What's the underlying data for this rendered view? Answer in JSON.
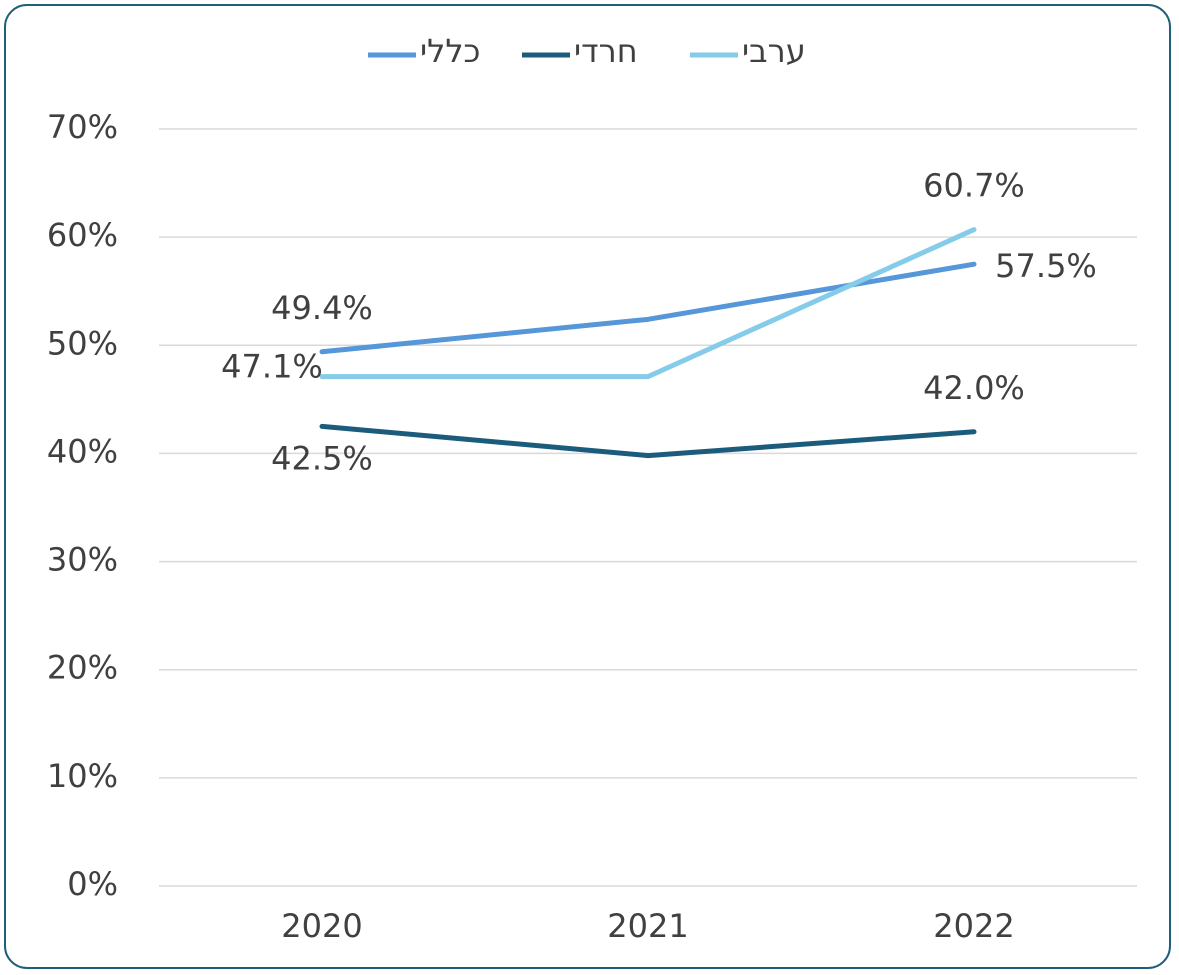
{
  "chart_data": {
    "type": "line",
    "categories": [
      "2020",
      "2021",
      "2022"
    ],
    "series": [
      {
        "name": "כללי",
        "color": "#5597d8",
        "values": [
          49.4,
          52.4,
          57.5
        ],
        "value_labels": [
          "49.4%",
          null,
          "57.5%"
        ]
      },
      {
        "name": "חרדי",
        "color": "#1b5c7c",
        "values": [
          42.5,
          39.8,
          42.0
        ],
        "value_labels": [
          "42.5%",
          null,
          "42.0%"
        ]
      },
      {
        "name": "ערבי",
        "color": "#85cbea",
        "values": [
          47.1,
          47.1,
          60.7
        ],
        "value_labels": [
          "47.1%",
          null,
          "60.7%"
        ]
      }
    ],
    "ylim": [
      0,
      70
    ],
    "yticks": [
      {
        "value": 0,
        "label": "0%"
      },
      {
        "value": 10,
        "label": "10%"
      },
      {
        "value": 20,
        "label": "20%"
      },
      {
        "value": 30,
        "label": "30%"
      },
      {
        "value": 40,
        "label": "40%"
      },
      {
        "value": 50,
        "label": "50%"
      },
      {
        "value": 60,
        "label": "60%"
      },
      {
        "value": 70,
        "label": "70%"
      }
    ],
    "grid": true,
    "legend": "top"
  }
}
